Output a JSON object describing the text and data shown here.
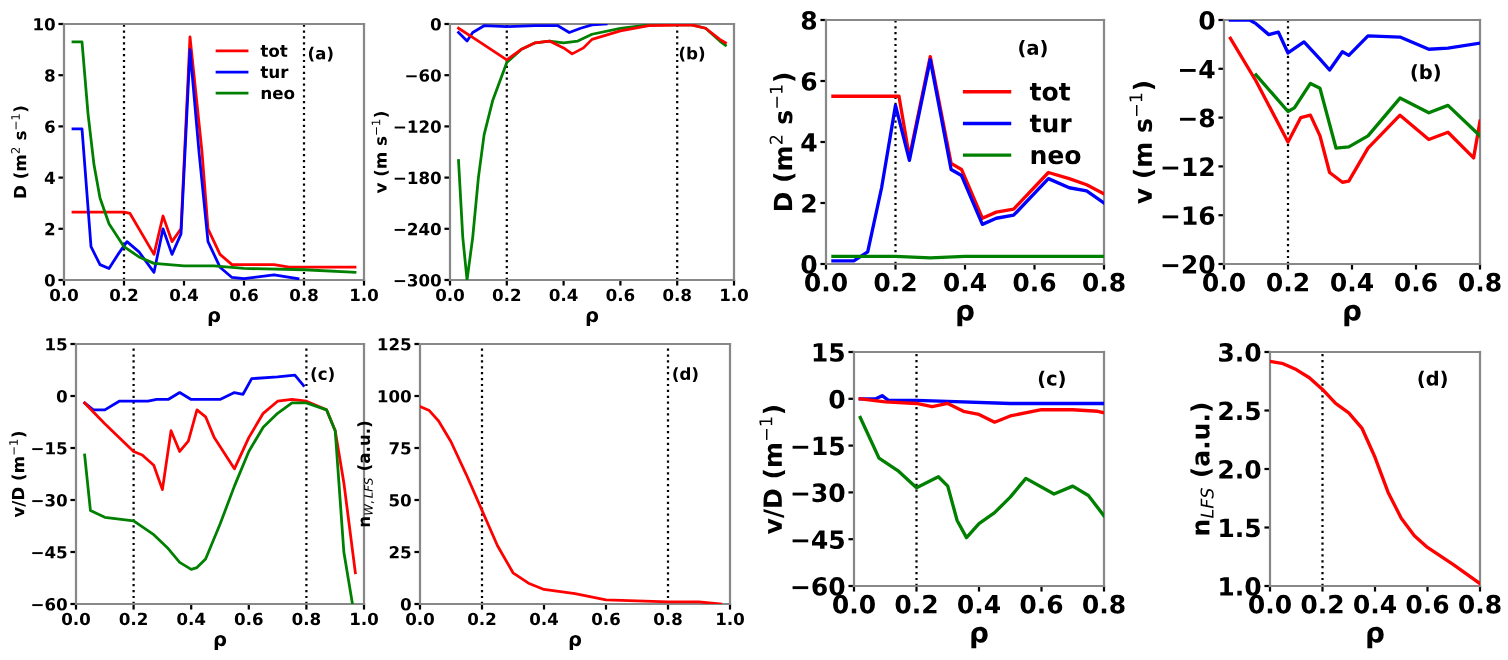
{
  "chart_data": [
    {
      "type": "line",
      "xlabel": "ρ",
      "ylabel": "D (m$^{2}$ s$^{−1}$)",
      "annotations": [
        "(a)"
      ],
      "legend": "top right",
      "grid": false,
      "xlim": [
        0,
        1
      ],
      "xticks": [
        {
          "value": 0,
          "label": "0.0"
        },
        {
          "value": 0.2,
          "label": "0.2"
        },
        {
          "value": 0.4,
          "label": "0.4"
        },
        {
          "value": 0.6,
          "label": "0.6"
        },
        {
          "value": 0.8,
          "label": "0.8"
        },
        {
          "value": 1,
          "label": "1.0"
        }
      ],
      "ylim": [
        0,
        10
      ],
      "yticks": [
        0,
        2,
        4,
        6,
        8,
        10
      ],
      "ref_lines": [
        {
          "axis": "x",
          "value": 0.2,
          "line_style": "dotted",
          "color": "#000000"
        },
        {
          "axis": "x",
          "value": 0.8,
          "line_style": "dotted",
          "color": "#000000"
        }
      ],
      "series": [
        {
          "name": "tot",
          "color": "#ff0000",
          "x": [
            0.03,
            0.2,
            0.22,
            0.3,
            0.33,
            0.36,
            0.39,
            0.42,
            0.46,
            0.48,
            0.52,
            0.56,
            0.7,
            0.75,
            0.97
          ],
          "values": [
            2.65,
            2.65,
            2.6,
            1.0,
            2.5,
            1.5,
            2.0,
            9.5,
            5,
            2,
            1.0,
            0.6,
            0.6,
            0.5,
            0.5
          ]
        },
        {
          "name": "tur",
          "color": "#0000ff",
          "x": [
            0.03,
            0.06,
            0.09,
            0.12,
            0.15,
            0.18,
            0.21,
            0.25,
            0.3,
            0.33,
            0.36,
            0.39,
            0.42,
            0.45,
            0.48,
            0.52,
            0.56,
            0.6,
            0.7,
            0.78
          ],
          "values": [
            5.9,
            5.9,
            1.3,
            0.6,
            0.45,
            1.0,
            1.5,
            1.1,
            0.3,
            2.0,
            1.0,
            1.8,
            9.0,
            5,
            1.5,
            0.5,
            0.1,
            0.05,
            0.2,
            0.05
          ]
        },
        {
          "name": "neo",
          "color": "#008000",
          "x": [
            0.03,
            0.06,
            0.08,
            0.1,
            0.12,
            0.15,
            0.2,
            0.25,
            0.3,
            0.4,
            0.5,
            0.6,
            0.8,
            0.97
          ],
          "values": [
            9.3,
            9.3,
            6.5,
            4.5,
            3.2,
            2.2,
            1.3,
            0.9,
            0.65,
            0.55,
            0.55,
            0.45,
            0.4,
            0.3
          ]
        }
      ]
    },
    {
      "type": "line",
      "xlabel": "ρ",
      "ylabel": "v (m s$^{−1}$)",
      "annotations": [
        "(b)"
      ],
      "grid": false,
      "xlim": [
        0,
        1
      ],
      "xticks": [
        {
          "value": 0,
          "label": "0.0"
        },
        {
          "value": 0.2,
          "label": "0.2"
        },
        {
          "value": 0.4,
          "label": "0.4"
        },
        {
          "value": 0.6,
          "label": "0.6"
        },
        {
          "value": 0.8,
          "label": "0.8"
        },
        {
          "value": 1,
          "label": "1.0"
        }
      ],
      "ylim": [
        -300,
        0
      ],
      "yticks": [
        0,
        {
          "value": -60,
          "label": "−60"
        },
        {
          "value": -120,
          "label": "−120"
        },
        {
          "value": -180,
          "label": "−180"
        },
        {
          "value": -240,
          "label": "−240"
        },
        {
          "value": -300,
          "label": "−300"
        }
      ],
      "ref_lines": [
        {
          "axis": "x",
          "value": 0.2,
          "line_style": "dotted",
          "color": "#000000"
        },
        {
          "axis": "x",
          "value": 0.8,
          "line_style": "dotted",
          "color": "#000000"
        }
      ],
      "series": [
        {
          "color": "#008000",
          "x": [
            0.03,
            0.045,
            0.06,
            0.08,
            0.1,
            0.12,
            0.15,
            0.2,
            0.25,
            0.3,
            0.35,
            0.4,
            0.45,
            0.5,
            0.6,
            0.7,
            0.85,
            0.9,
            0.95,
            0.97
          ],
          "values": [
            -160,
            -250,
            -300,
            -250,
            -180,
            -130,
            -90,
            -45,
            -30,
            -22,
            -20,
            -22,
            -20,
            -12,
            -5,
            -1,
            -1,
            -5,
            -20,
            -25
          ]
        },
        {
          "color": "#0000ff",
          "x": [
            0.03,
            0.06,
            0.08,
            0.12,
            0.2,
            0.3,
            0.38,
            0.42,
            0.46,
            0.5,
            0.55
          ],
          "values": [
            -10,
            -20,
            -10,
            -2,
            -3,
            -2,
            -2,
            -10,
            -5,
            -1,
            0
          ]
        },
        {
          "color": "#ff0000",
          "x": [
            0.03,
            0.1,
            0.2,
            0.25,
            0.3,
            0.35,
            0.4,
            0.43,
            0.47,
            0.5,
            0.6,
            0.7,
            0.85,
            0.9,
            0.95,
            0.97
          ],
          "values": [
            -5,
            -20,
            -42,
            -30,
            -22,
            -20,
            -28,
            -35,
            -28,
            -18,
            -8,
            -2,
            -1,
            -5,
            -18,
            -22
          ]
        }
      ]
    },
    {
      "type": "line",
      "xlabel": "ρ",
      "ylabel": "v/D (m$^{−1}$)",
      "annotations": [
        "(c)"
      ],
      "grid": false,
      "xlim": [
        0,
        1
      ],
      "xticks": [
        {
          "value": 0,
          "label": "0.0"
        },
        {
          "value": 0.2,
          "label": "0.2"
        },
        {
          "value": 0.4,
          "label": "0.4"
        },
        {
          "value": 0.6,
          "label": "0.6"
        },
        {
          "value": 0.8,
          "label": "0.8"
        },
        {
          "value": 1,
          "label": "1.0"
        }
      ],
      "ylim": [
        -60,
        15
      ],
      "yticks": [
        15,
        0,
        {
          "value": -15,
          "label": "−15"
        },
        {
          "value": -30,
          "label": "−30"
        },
        {
          "value": -45,
          "label": "−45"
        },
        {
          "value": -60,
          "label": "−60"
        }
      ],
      "ref_lines": [
        {
          "axis": "x",
          "value": 0.2,
          "line_style": "dotted",
          "color": "#000000"
        },
        {
          "axis": "x",
          "value": 0.8,
          "line_style": "dotted",
          "color": "#000000"
        }
      ],
      "series": [
        {
          "color": "#0000ff",
          "x": [
            0.03,
            0.06,
            0.1,
            0.15,
            0.2,
            0.25,
            0.28,
            0.32,
            0.36,
            0.4,
            0.5,
            0.55,
            0.58,
            0.61,
            0.7,
            0.76,
            0.79
          ],
          "values": [
            -2,
            -4,
            -4,
            -1.5,
            -1.5,
            -1.5,
            -1,
            -1,
            1,
            -1,
            -1,
            1,
            0.5,
            5,
            5.5,
            6,
            3
          ]
        },
        {
          "color": "#ff0000",
          "x": [
            0.03,
            0.1,
            0.2,
            0.23,
            0.27,
            0.3,
            0.33,
            0.36,
            0.39,
            0.42,
            0.45,
            0.48,
            0.55,
            0.6,
            0.65,
            0.7,
            0.75,
            0.8,
            0.87,
            0.9,
            0.93,
            0.97
          ],
          "values": [
            -2,
            -8,
            -16,
            -17,
            -20,
            -27,
            -10,
            -16,
            -13,
            -4,
            -6,
            -12,
            -21,
            -12,
            -5,
            -1.5,
            -1,
            -1.5,
            -4,
            -10,
            -25,
            -51
          ]
        },
        {
          "color": "#008000",
          "x": [
            0.03,
            0.05,
            0.1,
            0.2,
            0.27,
            0.32,
            0.36,
            0.4,
            0.42,
            0.45,
            0.5,
            0.55,
            0.6,
            0.65,
            0.7,
            0.75,
            0.8,
            0.87,
            0.9,
            0.93,
            0.96
          ],
          "values": [
            -17,
            -33,
            -35,
            -36,
            -40,
            -44,
            -48,
            -50,
            -49.5,
            -47,
            -37,
            -26,
            -16,
            -9,
            -5,
            -2,
            -2,
            -4,
            -10,
            -45,
            -60
          ]
        }
      ]
    },
    {
      "type": "line",
      "xlabel": "ρ",
      "ylabel": "n$_{W,LFS}$ (a.u.)",
      "annotations": [
        "(d)"
      ],
      "grid": false,
      "xlim": [
        0,
        1
      ],
      "xticks": [
        {
          "value": 0,
          "label": "0.0"
        },
        {
          "value": 0.2,
          "label": "0.2"
        },
        {
          "value": 0.4,
          "label": "0.4"
        },
        {
          "value": 0.6,
          "label": "0.6"
        },
        {
          "value": 0.8,
          "label": "0.8"
        },
        {
          "value": 1,
          "label": "1.0"
        }
      ],
      "ylim": [
        0,
        125
      ],
      "yticks": [
        0,
        25,
        50,
        75,
        100,
        125
      ],
      "ref_lines": [
        {
          "axis": "x",
          "value": 0.2,
          "line_style": "dotted",
          "color": "#000000"
        },
        {
          "axis": "x",
          "value": 0.8,
          "line_style": "dotted",
          "color": "#000000"
        }
      ],
      "series": [
        {
          "color": "#ff0000",
          "x": [
            0,
            0.03,
            0.06,
            0.1,
            0.15,
            0.2,
            0.25,
            0.3,
            0.35,
            0.4,
            0.5,
            0.6,
            0.8,
            0.9,
            0.97
          ],
          "values": [
            95,
            93,
            88,
            78,
            62,
            45,
            28,
            15,
            10,
            7,
            5,
            2,
            1,
            1,
            0
          ]
        }
      ]
    },
    {
      "type": "line",
      "xlabel": "ρ",
      "ylabel": "D (m$^{2}$ s$^{−1}$)",
      "annotations": [
        "(a)"
      ],
      "legend": "right",
      "grid": false,
      "xlim": [
        0,
        0.8
      ],
      "xticks": [
        {
          "value": 0,
          "label": "0.0"
        },
        {
          "value": 0.2,
          "label": "0.2"
        },
        {
          "value": 0.4,
          "label": "0.4"
        },
        {
          "value": 0.6,
          "label": "0.6"
        },
        {
          "value": 0.8,
          "label": "0.8"
        }
      ],
      "ylim": [
        0,
        8
      ],
      "yticks": [
        0,
        2,
        4,
        6,
        8
      ],
      "ref_lines": [
        {
          "axis": "x",
          "value": 0.2,
          "line_style": "dotted",
          "color": "#000000"
        }
      ],
      "series": [
        {
          "name": "tot",
          "color": "#ff0000",
          "x": [
            0.02,
            0.21,
            0.24,
            0.3,
            0.36,
            0.39,
            0.45,
            0.49,
            0.54,
            0.64,
            0.7,
            0.75,
            0.8
          ],
          "values": [
            5.5,
            5.5,
            3.5,
            6.8,
            3.3,
            3.1,
            1.5,
            1.7,
            1.8,
            3.0,
            2.8,
            2.6,
            2.3
          ]
        },
        {
          "name": "tur",
          "color": "#0000ff",
          "x": [
            0.02,
            0.08,
            0.12,
            0.16,
            0.2,
            0.24,
            0.3,
            0.36,
            0.39,
            0.45,
            0.49,
            0.54,
            0.64,
            0.7,
            0.75,
            0.8
          ],
          "values": [
            0.1,
            0.1,
            0.4,
            2.5,
            5.2,
            3.4,
            6.7,
            3.1,
            2.9,
            1.3,
            1.5,
            1.6,
            2.8,
            2.5,
            2.4,
            2.0
          ]
        },
        {
          "name": "neo",
          "color": "#008000",
          "x": [
            0.02,
            0.2,
            0.3,
            0.4,
            0.8
          ],
          "values": [
            0.25,
            0.25,
            0.2,
            0.25,
            0.25
          ]
        }
      ]
    },
    {
      "type": "line",
      "xlabel": "ρ",
      "ylabel": "v (m s$^{−1}$)",
      "annotations": [
        "(b)"
      ],
      "grid": false,
      "xlim": [
        0,
        0.8
      ],
      "xticks": [
        {
          "value": 0,
          "label": "0.0"
        },
        {
          "value": 0.2,
          "label": "0.2"
        },
        {
          "value": 0.4,
          "label": "0.4"
        },
        {
          "value": 0.6,
          "label": "0.6"
        },
        {
          "value": 0.8,
          "label": "0.8"
        }
      ],
      "ylim": [
        -20,
        0
      ],
      "yticks": [
        0,
        {
          "value": -4,
          "label": "−4"
        },
        {
          "value": -8,
          "label": "−8"
        },
        {
          "value": -12,
          "label": "−12"
        },
        {
          "value": -16,
          "label": "−16"
        },
        {
          "value": -20,
          "label": "−20"
        }
      ],
      "ref_lines": [
        {
          "axis": "x",
          "value": 0.2,
          "line_style": "dotted",
          "color": "#000000"
        }
      ],
      "series": [
        {
          "color": "#0000ff",
          "x": [
            0.02,
            0.08,
            0.1,
            0.14,
            0.17,
            0.2,
            0.25,
            0.3,
            0.33,
            0.37,
            0.39,
            0.45,
            0.55,
            0.64,
            0.7,
            0.8
          ],
          "values": [
            0,
            0,
            -0.3,
            -1.2,
            -1.0,
            -2.7,
            -1.8,
            -3.2,
            -4.1,
            -2.6,
            -2.9,
            -1.3,
            -1.4,
            -2.4,
            -2.3,
            -1.9
          ]
        },
        {
          "color": "#ff0000",
          "x": [
            0.02,
            0.1,
            0.2,
            0.24,
            0.27,
            0.3,
            0.33,
            0.37,
            0.39,
            0.45,
            0.55,
            0.64,
            0.7,
            0.78,
            0.8
          ],
          "values": [
            -1.5,
            -5,
            -10,
            -8,
            -7.8,
            -9.5,
            -12.5,
            -13.3,
            -13.2,
            -10.5,
            -7.8,
            -9.8,
            -9.2,
            -11.3,
            -8.3
          ]
        },
        {
          "color": "#008000",
          "x": [
            0.1,
            0.15,
            0.2,
            0.22,
            0.27,
            0.3,
            0.35,
            0.39,
            0.45,
            0.55,
            0.64,
            0.7,
            0.8
          ],
          "values": [
            -4.5,
            -6,
            -7.5,
            -7.2,
            -5.2,
            -5.6,
            -10.5,
            -10.4,
            -9.5,
            -6.4,
            -7.6,
            -7.0,
            -9.5
          ]
        }
      ]
    },
    {
      "type": "line",
      "xlabel": "ρ",
      "ylabel": "v/D (m$^{−1}$)",
      "annotations": [
        "(c)"
      ],
      "grid": false,
      "xlim": [
        0,
        0.8
      ],
      "xticks": [
        {
          "value": 0,
          "label": "0.0"
        },
        {
          "value": 0.2,
          "label": "0.2"
        },
        {
          "value": 0.4,
          "label": "0.4"
        },
        {
          "value": 0.6,
          "label": "0.6"
        },
        {
          "value": 0.8,
          "label": "0.8"
        }
      ],
      "ylim": [
        -60,
        15
      ],
      "yticks": [
        15,
        0,
        {
          "value": -15,
          "label": "−15"
        },
        {
          "value": -30,
          "label": "−30"
        },
        {
          "value": -45,
          "label": "−45"
        },
        {
          "value": -60,
          "label": "−60"
        }
      ],
      "ref_lines": [
        {
          "axis": "x",
          "value": 0.2,
          "line_style": "dotted",
          "color": "#000000"
        }
      ],
      "series": [
        {
          "color": "#0000ff",
          "x": [
            0.02,
            0.07,
            0.09,
            0.11,
            0.2,
            0.3,
            0.5,
            0.8
          ],
          "values": [
            0,
            0,
            1,
            -0.5,
            -0.5,
            -0.8,
            -1.5,
            -1.5
          ]
        },
        {
          "color": "#ff0000",
          "x": [
            0.02,
            0.1,
            0.2,
            0.25,
            0.3,
            0.35,
            0.4,
            0.45,
            0.5,
            0.6,
            0.7,
            0.78,
            0.8
          ],
          "values": [
            0,
            -1,
            -1.5,
            -2.5,
            -1.5,
            -4,
            -5,
            -7.5,
            -5.5,
            -3.5,
            -3.5,
            -4,
            -4.5
          ]
        },
        {
          "color": "#008000",
          "x": [
            0.02,
            0.08,
            0.14,
            0.2,
            0.27,
            0.3,
            0.33,
            0.36,
            0.4,
            0.45,
            0.5,
            0.55,
            0.64,
            0.7,
            0.75,
            0.8
          ],
          "values": [
            -6,
            -19,
            -23,
            -28.5,
            -25,
            -28,
            -39,
            -44.5,
            -40,
            -36.5,
            -31.5,
            -25.5,
            -30.5,
            -28,
            -31,
            -37.5
          ]
        }
      ]
    },
    {
      "type": "line",
      "xlabel": "ρ",
      "ylabel": "n$_{LFS}$ (a.u.)",
      "annotations": [
        "(d)"
      ],
      "grid": false,
      "xlim": [
        0,
        0.8
      ],
      "xticks": [
        {
          "value": 0,
          "label": "0.0"
        },
        {
          "value": 0.2,
          "label": "0.2"
        },
        {
          "value": 0.4,
          "label": "0.4"
        },
        {
          "value": 0.6,
          "label": "0.6"
        },
        {
          "value": 0.8,
          "label": "0.8"
        }
      ],
      "ylim": [
        1,
        3
      ],
      "yticks": [
        {
          "value": 1,
          "label": "1.0"
        },
        {
          "value": 1.5,
          "label": "1.5"
        },
        {
          "value": 2,
          "label": "2.0"
        },
        {
          "value": 2.5,
          "label": "2.5"
        },
        {
          "value": 3,
          "label": "3.0"
        }
      ],
      "ref_lines": [
        {
          "axis": "x",
          "value": 0.2,
          "line_style": "dotted",
          "color": "#000000"
        }
      ],
      "series": [
        {
          "color": "#ff0000",
          "x": [
            0,
            0.05,
            0.1,
            0.15,
            0.2,
            0.25,
            0.3,
            0.35,
            0.4,
            0.45,
            0.5,
            0.55,
            0.6,
            0.7,
            0.8
          ],
          "values": [
            2.92,
            2.9,
            2.85,
            2.78,
            2.68,
            2.56,
            2.48,
            2.35,
            2.1,
            1.8,
            1.58,
            1.43,
            1.33,
            1.18,
            1.02
          ]
        }
      ]
    }
  ]
}
